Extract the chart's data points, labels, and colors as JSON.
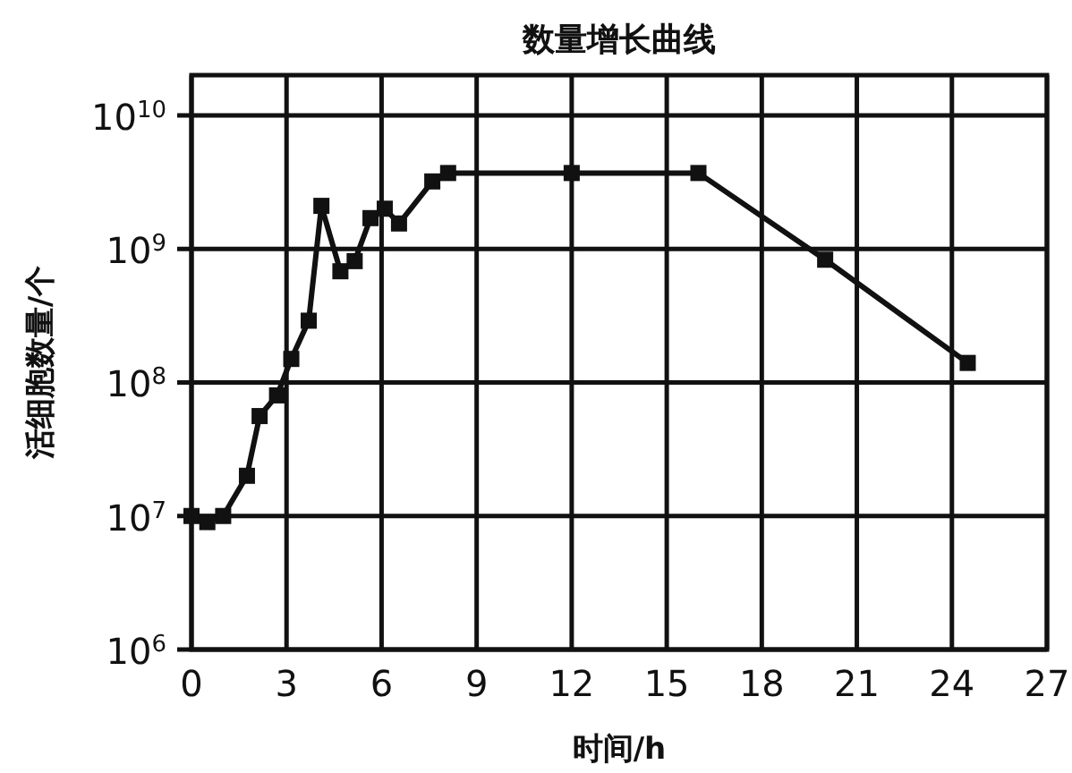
{
  "chart_data": {
    "type": "line",
    "title": "数量增长曲线",
    "xlabel": "时间/h",
    "ylabel": "活细胞数量/个",
    "log": "y",
    "grid": true,
    "marker": "square",
    "line_style": "solid",
    "xlim": [
      0,
      27
    ],
    "xticks": [
      0,
      3,
      6,
      9,
      12,
      15,
      18,
      21,
      24,
      27
    ],
    "ylim": [
      1000000,
      20000000000
    ],
    "yticks": [
      {
        "value": 1000000,
        "label": "10$^{6}$"
      },
      {
        "value": 10000000,
        "label": "10$^{7}$"
      },
      {
        "value": 100000000,
        "label": "10$^{8}$"
      },
      {
        "value": 1000000000,
        "label": "10$^{9}$"
      },
      {
        "value": 10000000000,
        "label": "10$^{10}$"
      }
    ],
    "series": [
      {
        "color": "#111111",
        "x": [
          0,
          0.5,
          1,
          1.75,
          2.15,
          2.7,
          3.15,
          3.7,
          4.1,
          4.7,
          5.15,
          5.65,
          6.1,
          6.55,
          7.6,
          8.1,
          12,
          16,
          20,
          24.5
        ],
        "values": [
          10000000,
          9000000,
          10000000,
          20000000,
          56000000,
          80000000,
          150000000,
          290000000,
          2100000000,
          680000000,
          810000000,
          1700000000,
          2000000000,
          1550000000,
          3200000000,
          3700000000,
          3700000000,
          3700000000,
          830000000,
          140000000
        ]
      }
    ]
  }
}
